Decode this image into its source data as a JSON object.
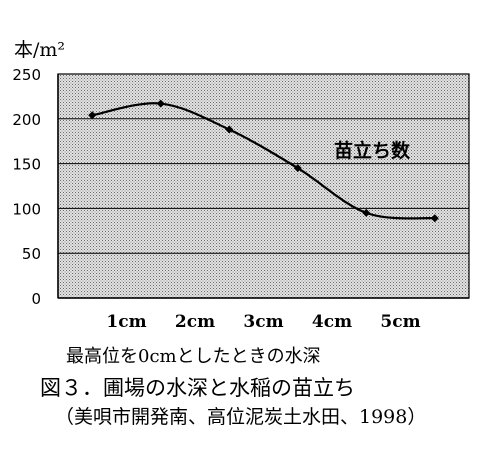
{
  "chart_data": {
    "type": "line",
    "ylabel": "本/m²",
    "yticks": [
      0,
      50,
      100,
      150,
      200,
      250
    ],
    "ylim": [
      0,
      250
    ],
    "xtick_labels": [
      "1cm",
      "2cm",
      "3cm",
      "4cm",
      "5cm"
    ],
    "series": [
      {
        "name": "苗立ち数",
        "points": [
          {
            "x": 0.5,
            "y": 204
          },
          {
            "x": 1.5,
            "y": 217
          },
          {
            "x": 2.5,
            "y": 188
          },
          {
            "x": 3.5,
            "y": 145
          },
          {
            "x": 4.5,
            "y": 95
          },
          {
            "x": 5.5,
            "y": 89
          }
        ]
      }
    ],
    "grid": true,
    "background": "dotted gray",
    "series_color": "#000000"
  },
  "captions": {
    "condition": "最高位を0cmとしたときの水深",
    "title": "図３．圃場の水深と水稲の苗立ち",
    "source": "（美唄市開発南、高位泥炭土水田、1998）"
  }
}
